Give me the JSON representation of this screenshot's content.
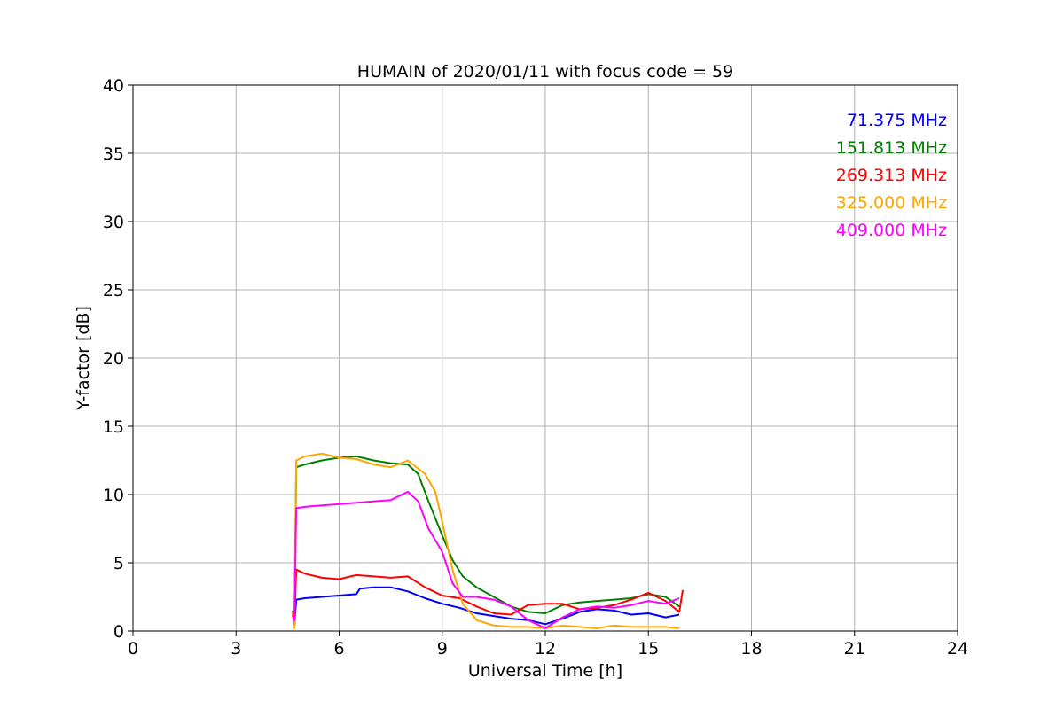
{
  "chart_data": {
    "type": "line",
    "title": "HUMAIN of 2020/01/11 with focus code = 59",
    "xlabel": "Universal Time [h]",
    "ylabel": "Y-factor [dB]",
    "xlim": [
      0,
      24
    ],
    "ylim": [
      0,
      40
    ],
    "xticks": [
      0,
      3,
      6,
      9,
      12,
      15,
      18,
      21,
      24
    ],
    "yticks": [
      0,
      5,
      10,
      15,
      20,
      25,
      30,
      35,
      40
    ],
    "grid": true,
    "legend_position": "top-right",
    "series": [
      {
        "name": "71.375 MHz",
        "color": "#0000ff",
        "x": [
          4.65,
          4.7,
          4.75,
          5.0,
          5.5,
          6.0,
          6.5,
          6.6,
          7.0,
          7.5,
          8.0,
          8.5,
          9.0,
          9.5,
          10.0,
          10.5,
          11.0,
          11.5,
          12.0,
          12.5,
          13.0,
          13.5,
          14.0,
          14.5,
          15.0,
          15.5,
          15.9
        ],
        "y": [
          1.2,
          0.5,
          2.3,
          2.4,
          2.5,
          2.6,
          2.7,
          3.1,
          3.2,
          3.2,
          2.9,
          2.4,
          2.0,
          1.7,
          1.3,
          1.1,
          0.9,
          0.8,
          0.5,
          0.9,
          1.4,
          1.6,
          1.5,
          1.2,
          1.3,
          1.0,
          1.2
        ]
      },
      {
        "name": "151.813 MHz",
        "color": "#008000",
        "x": [
          4.65,
          4.7,
          4.75,
          5.0,
          5.5,
          6.0,
          6.5,
          7.0,
          7.5,
          8.0,
          8.3,
          8.6,
          9.0,
          9.3,
          9.6,
          10.0,
          10.5,
          11.0,
          11.5,
          12.0,
          12.5,
          13.0,
          13.5,
          14.0,
          14.5,
          15.0,
          15.5,
          15.9
        ],
        "y": [
          1.5,
          0.8,
          12.0,
          12.2,
          12.5,
          12.7,
          12.8,
          12.5,
          12.3,
          12.2,
          11.5,
          9.5,
          7.0,
          5.2,
          4.0,
          3.2,
          2.5,
          1.8,
          1.4,
          1.3,
          1.9,
          2.1,
          2.2,
          2.3,
          2.4,
          2.7,
          2.5,
          1.8
        ]
      },
      {
        "name": "269.313 MHz",
        "color": "#ff0000",
        "x": [
          4.65,
          4.7,
          4.75,
          5.0,
          5.5,
          6.0,
          6.5,
          7.0,
          7.5,
          8.0,
          8.5,
          9.0,
          9.5,
          10.0,
          10.5,
          11.0,
          11.5,
          12.0,
          12.5,
          13.0,
          13.5,
          14.0,
          14.5,
          15.0,
          15.5,
          15.9,
          16.0
        ],
        "y": [
          1.4,
          0.6,
          4.5,
          4.2,
          3.9,
          3.8,
          4.1,
          4.0,
          3.9,
          4.0,
          3.2,
          2.6,
          2.4,
          1.8,
          1.3,
          1.2,
          1.9,
          2.0,
          2.0,
          1.6,
          1.7,
          1.9,
          2.3,
          2.8,
          2.2,
          1.4,
          3.0
        ]
      },
      {
        "name": "325.000 MHz",
        "color": "#ffa500",
        "x": [
          4.65,
          4.7,
          4.75,
          5.0,
          5.5,
          6.0,
          6.5,
          7.0,
          7.5,
          8.0,
          8.5,
          8.8,
          9.0,
          9.3,
          9.6,
          10.0,
          10.5,
          11.0,
          11.5,
          12.0,
          12.5,
          13.0,
          13.5,
          14.0,
          14.5,
          15.0,
          15.5,
          15.9
        ],
        "y": [
          0.3,
          0.2,
          12.5,
          12.8,
          13.0,
          12.7,
          12.6,
          12.2,
          12.0,
          12.5,
          11.5,
          10.2,
          8.0,
          4.5,
          2.0,
          0.8,
          0.4,
          0.3,
          0.3,
          0.2,
          0.4,
          0.3,
          0.2,
          0.4,
          0.3,
          0.3,
          0.3,
          0.2
        ]
      },
      {
        "name": "409.000 MHz",
        "color": "#ff00ff",
        "x": [
          4.65,
          4.7,
          4.75,
          5.0,
          5.5,
          6.0,
          6.5,
          7.0,
          7.5,
          8.0,
          8.3,
          8.6,
          9.0,
          9.3,
          9.6,
          10.0,
          10.5,
          11.0,
          11.5,
          12.0,
          12.5,
          13.0,
          13.5,
          14.0,
          14.5,
          15.0,
          15.5,
          15.9
        ],
        "y": [
          1.0,
          0.8,
          9.0,
          9.1,
          9.2,
          9.3,
          9.4,
          9.5,
          9.6,
          10.2,
          9.5,
          7.5,
          5.8,
          3.5,
          2.5,
          2.5,
          2.3,
          1.8,
          0.8,
          0.2,
          1.0,
          1.6,
          1.8,
          1.7,
          1.9,
          2.2,
          2.0,
          2.4
        ]
      }
    ]
  }
}
